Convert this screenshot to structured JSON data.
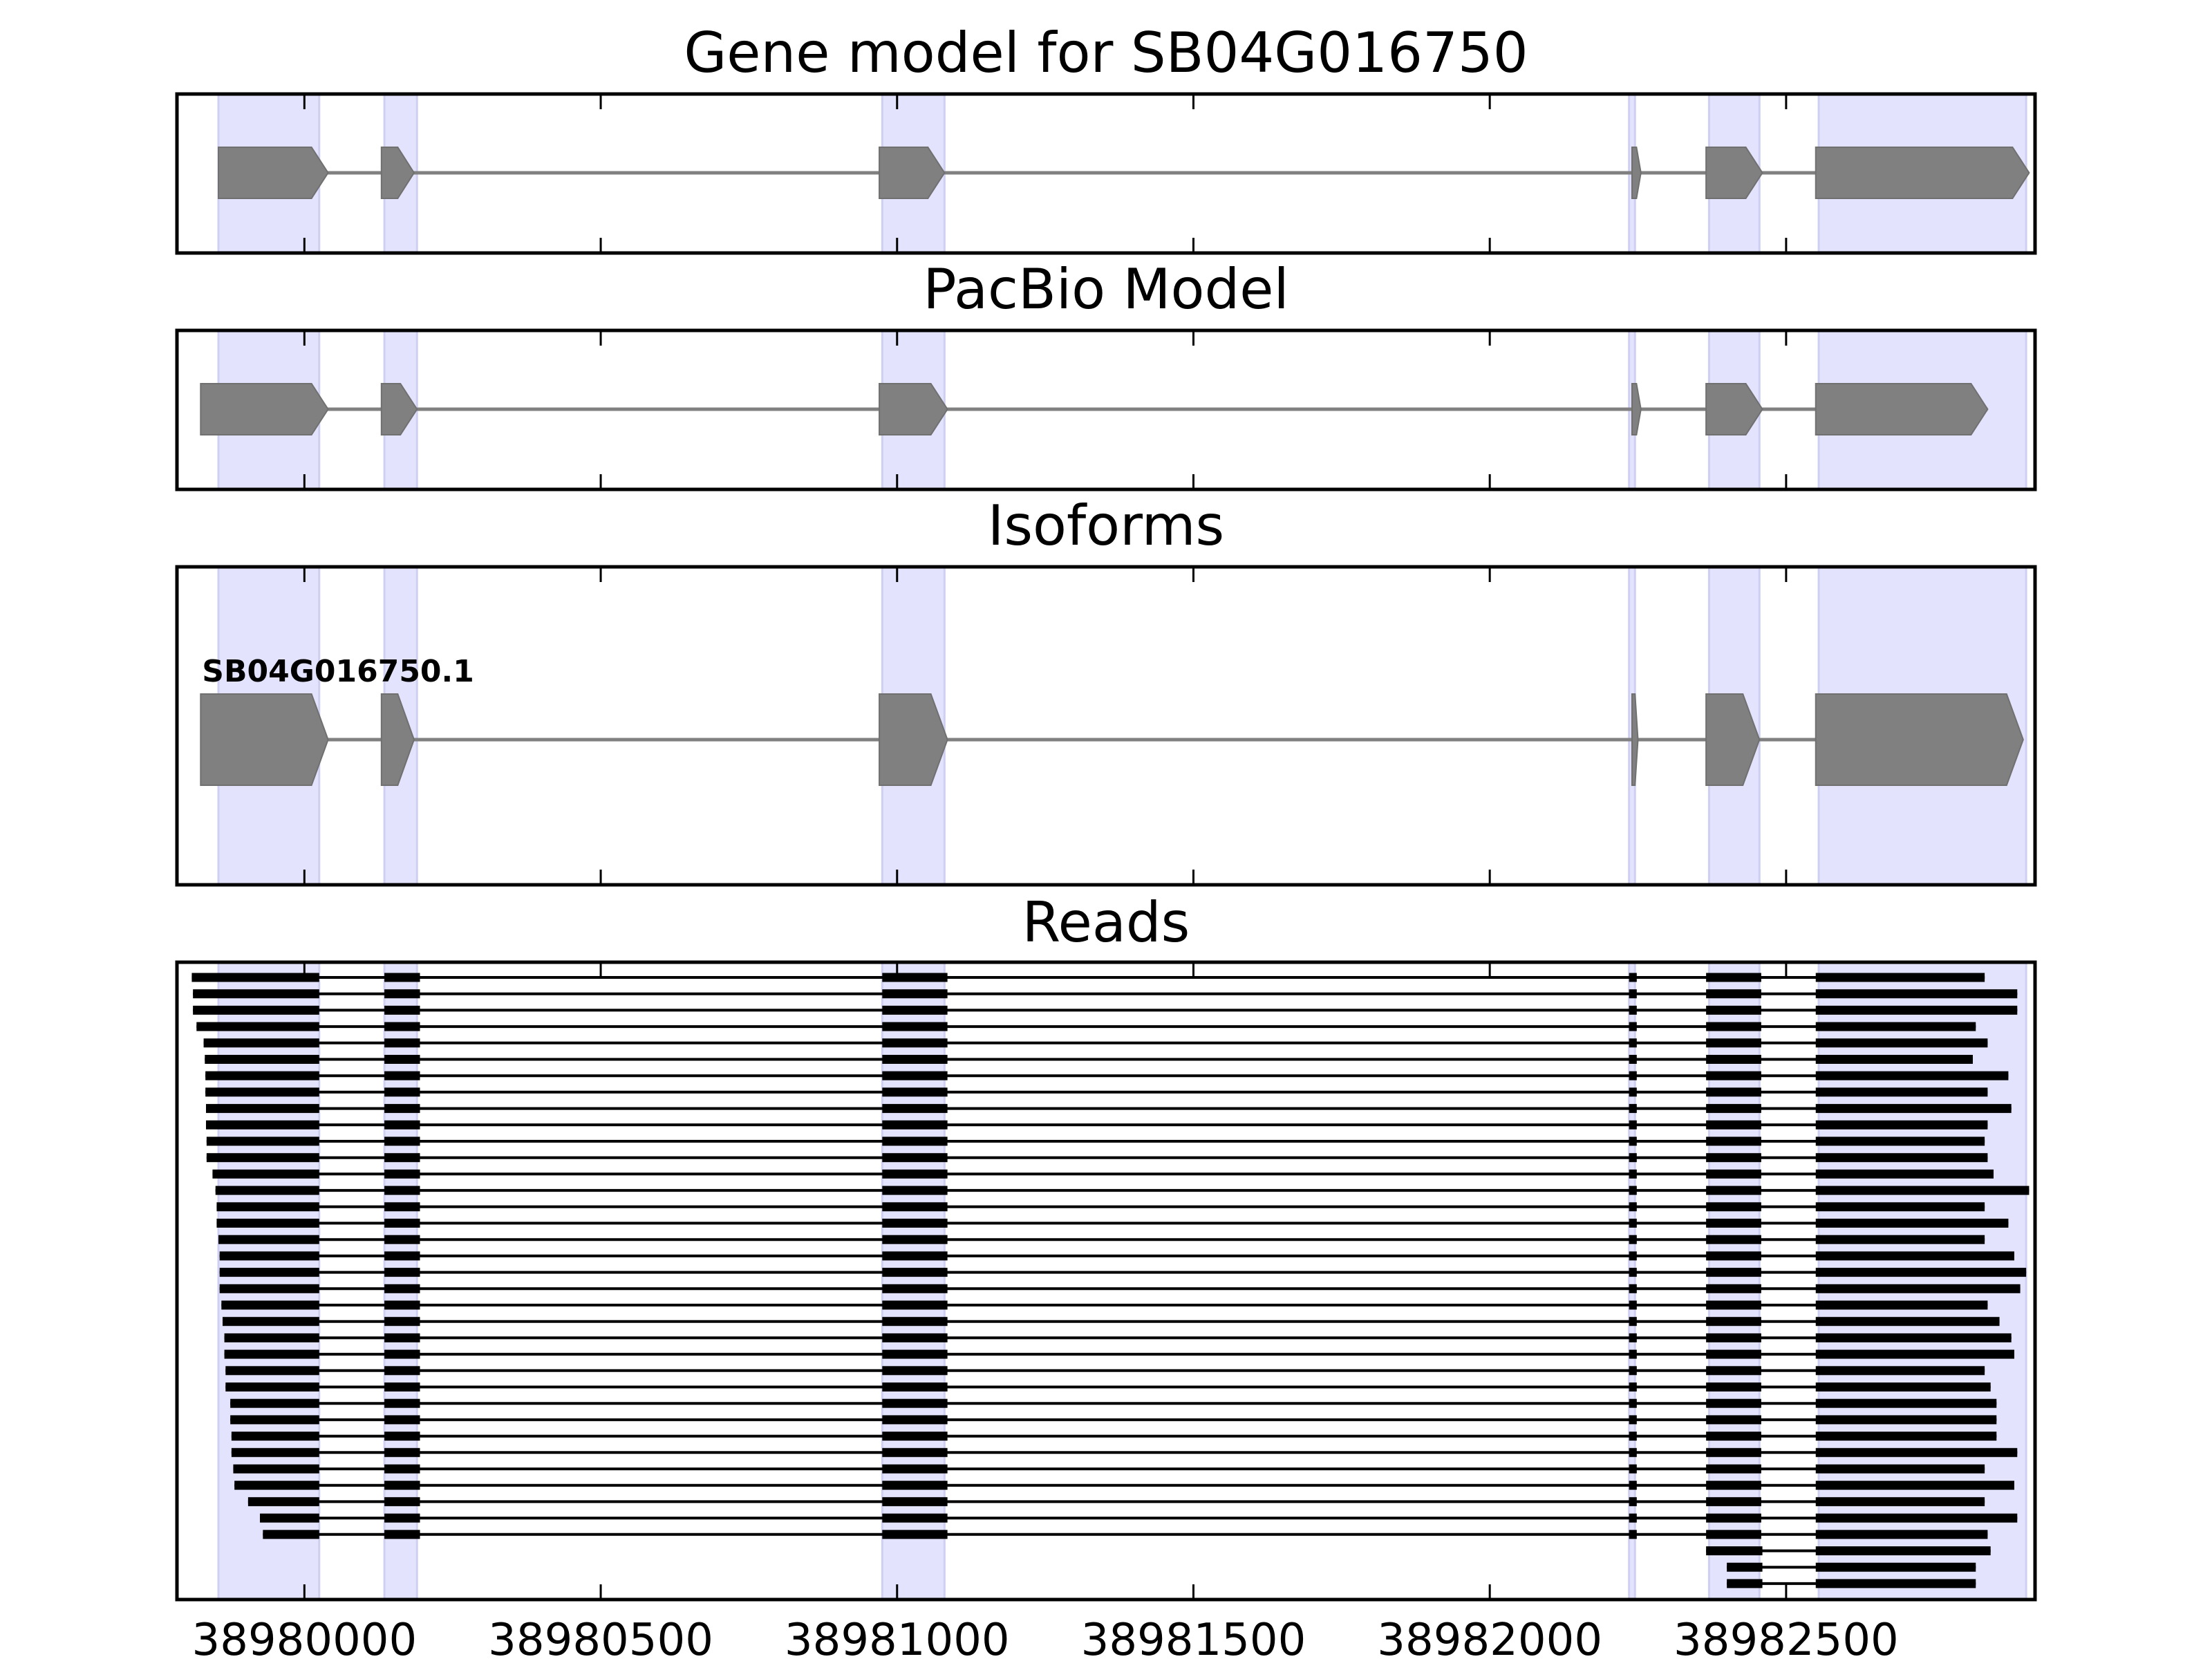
{
  "chart_data": [
    {
      "type": "gene-model",
      "title": "Gene model for SB04G016750",
      "transcripts": [
        {
          "label": "",
          "strand": "+",
          "exons": [
            [
              38979855,
              38980040
            ],
            [
              38980130,
              38980185
            ],
            [
              38980970,
              38981080
            ],
            [
              38982240,
              38982255
            ],
            [
              38982365,
              38982460
            ],
            [
              38982550,
              38982910
            ]
          ]
        }
      ]
    },
    {
      "type": "gene-model",
      "title": "PacBio Model",
      "transcripts": [
        {
          "label": "",
          "strand": "+",
          "exons": [
            [
              38979825,
              38980040
            ],
            [
              38980130,
              38980190
            ],
            [
              38980970,
              38981085
            ],
            [
              38982240,
              38982255
            ],
            [
              38982365,
              38982460
            ],
            [
              38982550,
              38982840
            ]
          ]
        }
      ]
    },
    {
      "type": "gene-model",
      "title": "Isoforms",
      "transcripts": [
        {
          "label": "SB04G016750.1",
          "strand": "+",
          "exons": [
            [
              38979825,
              38980040
            ],
            [
              38980130,
              38980185
            ],
            [
              38980970,
              38981085
            ],
            [
              38982240,
              38982250
            ],
            [
              38982365,
              38982455
            ],
            [
              38982550,
              38982900
            ]
          ]
        }
      ]
    },
    {
      "type": "reads",
      "title": "Reads",
      "xlabel": "",
      "ylabel": "",
      "xticks": [
        38980000,
        38980500,
        38981000,
        38981500,
        38982000,
        38982500
      ],
      "tick_labels": [
        "38980000",
        "38980500",
        "38981000",
        "38981500",
        "38982000",
        "38982500"
      ],
      "xlim": [
        38979785,
        38982920
      ],
      "exon_regions": [
        [
          38979855,
          38980025
        ],
        [
          38980135,
          38980190
        ],
        [
          38980975,
          38981080
        ],
        [
          38982235,
          38982245
        ],
        [
          38982370,
          38982455
        ],
        [
          38982555,
          38982905
        ]
      ],
      "internal_exons": [
        [
          38980135,
          38980195
        ],
        [
          38980975,
          38981085
        ],
        [
          38982235,
          38982248
        ],
        [
          38982365,
          38982458
        ]
      ],
      "reads": [
        {
          "start": 38979810,
          "first_exon_end": 38980025,
          "last_start": 38982550,
          "end": 38982835
        },
        {
          "start": 38979812,
          "first_exon_end": 38980025,
          "last_start": 38982550,
          "end": 38982890
        },
        {
          "start": 38979812,
          "first_exon_end": 38980025,
          "last_start": 38982550,
          "end": 38982890
        },
        {
          "start": 38979818,
          "first_exon_end": 38980025,
          "last_start": 38982550,
          "end": 38982820
        },
        {
          "start": 38979830,
          "first_exon_end": 38980025,
          "last_start": 38982550,
          "end": 38982840
        },
        {
          "start": 38979832,
          "first_exon_end": 38980025,
          "last_start": 38982550,
          "end": 38982815
        },
        {
          "start": 38979833,
          "first_exon_end": 38980025,
          "last_start": 38982550,
          "end": 38982875
        },
        {
          "start": 38979833,
          "first_exon_end": 38980025,
          "last_start": 38982550,
          "end": 38982840
        },
        {
          "start": 38979834,
          "first_exon_end": 38980025,
          "last_start": 38982550,
          "end": 38982880
        },
        {
          "start": 38979834,
          "first_exon_end": 38980025,
          "last_start": 38982550,
          "end": 38982840
        },
        {
          "start": 38979835,
          "first_exon_end": 38980025,
          "last_start": 38982550,
          "end": 38982835
        },
        {
          "start": 38979835,
          "first_exon_end": 38980025,
          "last_start": 38982550,
          "end": 38982840
        },
        {
          "start": 38979845,
          "first_exon_end": 38980025,
          "last_start": 38982550,
          "end": 38982850
        },
        {
          "start": 38979850,
          "first_exon_end": 38980025,
          "last_start": 38982550,
          "end": 38982910
        },
        {
          "start": 38979852,
          "first_exon_end": 38980025,
          "last_start": 38982550,
          "end": 38982835
        },
        {
          "start": 38979852,
          "first_exon_end": 38980025,
          "last_start": 38982550,
          "end": 38982875
        },
        {
          "start": 38979855,
          "first_exon_end": 38980025,
          "last_start": 38982550,
          "end": 38982835
        },
        {
          "start": 38979857,
          "first_exon_end": 38980025,
          "last_start": 38982550,
          "end": 38982885
        },
        {
          "start": 38979857,
          "first_exon_end": 38980025,
          "last_start": 38982550,
          "end": 38982905
        },
        {
          "start": 38979857,
          "first_exon_end": 38980025,
          "last_start": 38982550,
          "end": 38982895
        },
        {
          "start": 38979860,
          "first_exon_end": 38980025,
          "last_start": 38982550,
          "end": 38982840
        },
        {
          "start": 38979862,
          "first_exon_end": 38980025,
          "last_start": 38982550,
          "end": 38982860
        },
        {
          "start": 38979865,
          "first_exon_end": 38980025,
          "last_start": 38982550,
          "end": 38982880
        },
        {
          "start": 38979865,
          "first_exon_end": 38980025,
          "last_start": 38982550,
          "end": 38982885
        },
        {
          "start": 38979867,
          "first_exon_end": 38980025,
          "last_start": 38982550,
          "end": 38982835
        },
        {
          "start": 38979867,
          "first_exon_end": 38980025,
          "last_start": 38982550,
          "end": 38982845
        },
        {
          "start": 38979875,
          "first_exon_end": 38980025,
          "last_start": 38982550,
          "end": 38982855
        },
        {
          "start": 38979875,
          "first_exon_end": 38980025,
          "last_start": 38982550,
          "end": 38982855
        },
        {
          "start": 38979877,
          "first_exon_end": 38980025,
          "last_start": 38982550,
          "end": 38982855
        },
        {
          "start": 38979877,
          "first_exon_end": 38980025,
          "last_start": 38982550,
          "end": 38982890
        },
        {
          "start": 38979880,
          "first_exon_end": 38980025,
          "last_start": 38982550,
          "end": 38982835
        },
        {
          "start": 38979882,
          "first_exon_end": 38980025,
          "last_start": 38982550,
          "end": 38982885
        },
        {
          "start": 38979905,
          "first_exon_end": 38980025,
          "last_start": 38982550,
          "end": 38982835
        },
        {
          "start": 38979925,
          "first_exon_end": 38980025,
          "last_start": 38982550,
          "end": 38982890
        },
        {
          "start": 38979930,
          "first_exon_end": 38980025,
          "last_start": 38982550,
          "end": 38982840
        }
      ],
      "partial_reads": [
        {
          "exons": [
            [
              38982365,
              38982460
            ],
            [
              38982550,
              38982845
            ]
          ]
        },
        {
          "exons": [
            [
              38982400,
              38982460
            ],
            [
              38982550,
              38982820
            ]
          ]
        },
        {
          "exons": [
            [
              38982400,
              38982460
            ],
            [
              38982550,
              38982820
            ]
          ]
        }
      ]
    }
  ]
}
